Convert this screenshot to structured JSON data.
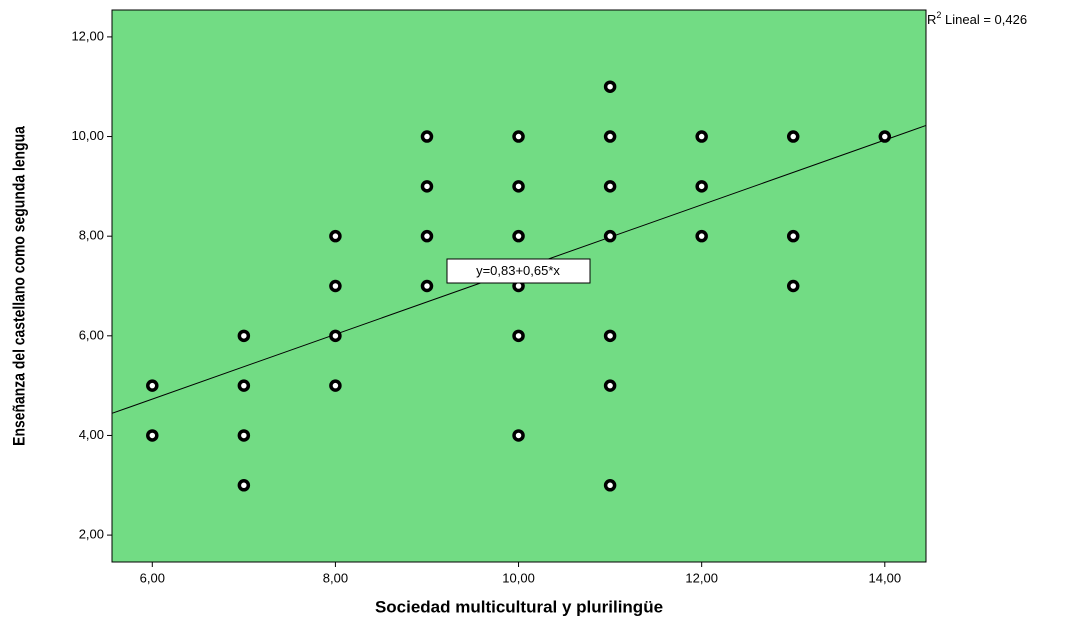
{
  "chart_data": {
    "type": "scatter",
    "x_label": "Sociedad multicultural y plurilingüe",
    "y_label": "Enseñanza del castellano como segunda lengua",
    "x": [
      6,
      6,
      7,
      7,
      7,
      7,
      8,
      8,
      8,
      8,
      9,
      9,
      9,
      9,
      10,
      10,
      10,
      10,
      10,
      10,
      11,
      11,
      11,
      11,
      11,
      11,
      11,
      12,
      12,
      12,
      13,
      13,
      13,
      14
    ],
    "values": [
      5,
      4,
      6,
      5,
      4,
      3,
      8,
      7,
      6,
      5,
      10,
      9,
      8,
      7,
      10,
      9,
      8,
      7,
      6,
      4,
      11,
      10,
      9,
      8,
      6,
      5,
      3,
      10,
      9,
      8,
      10,
      8,
      7,
      10
    ],
    "color": "#000000",
    "background": "#72dc84",
    "fit": {
      "intercept": 0.83,
      "slope": 0.65,
      "label": "y=0,83+0,65*x"
    },
    "r2": {
      "symbol": "R",
      "sup": "2",
      "text": " Lineal = 0,426"
    },
    "xlim": [
      5.56,
      14.45
    ],
    "ylim": [
      1.46,
      12.54
    ],
    "xticks": [
      {
        "value": 6,
        "label": "6,00"
      },
      {
        "value": 8,
        "label": "8,00"
      },
      {
        "value": 10,
        "label": "10,00"
      },
      {
        "value": 12,
        "label": "12,00"
      },
      {
        "value": 14,
        "label": "14,00"
      }
    ],
    "yticks": [
      {
        "value": 2,
        "label": "2,00"
      },
      {
        "value": 4,
        "label": "4,00"
      },
      {
        "value": 6,
        "label": "6,00"
      },
      {
        "value": 8,
        "label": "8,00"
      },
      {
        "value": 10,
        "label": "10,00"
      },
      {
        "value": 12,
        "label": "12,00"
      }
    ]
  }
}
